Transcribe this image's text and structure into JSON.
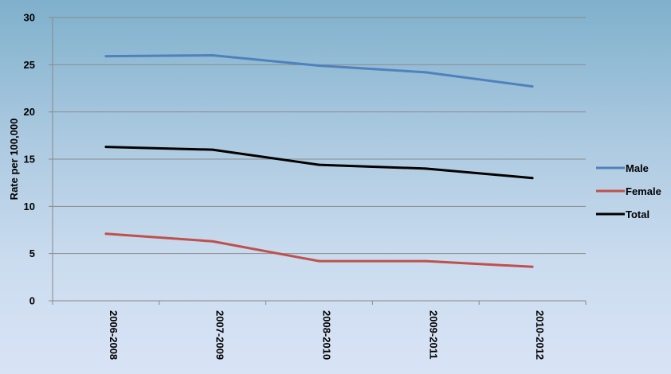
{
  "chart_data": {
    "type": "line",
    "title": "",
    "xlabel": "",
    "ylabel": "Rate per 100,000",
    "categories": [
      "2006-2008",
      "2007-2009",
      "2008-2010",
      "2009-2011",
      "2010-2012"
    ],
    "ylim": [
      0,
      30
    ],
    "yticks": [
      0,
      5,
      10,
      15,
      20,
      25,
      30
    ],
    "grid": true,
    "legend_position": "right",
    "series": [
      {
        "name": "Male",
        "color": "#4f81bd",
        "values": [
          25.9,
          26.0,
          24.9,
          24.2,
          22.7
        ]
      },
      {
        "name": "Female",
        "color": "#c0504d",
        "values": [
          7.1,
          6.3,
          4.2,
          4.2,
          3.6
        ]
      },
      {
        "name": "Total",
        "color": "#000000",
        "values": [
          16.3,
          16.0,
          14.4,
          14.0,
          13.0
        ]
      }
    ]
  }
}
